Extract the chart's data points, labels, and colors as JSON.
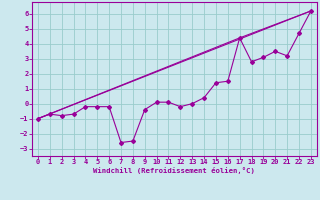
{
  "xlabel": "Windchill (Refroidissement éolien,°C)",
  "background_color": "#cce8ee",
  "grid_color": "#99cccc",
  "line_color": "#990099",
  "xlim": [
    -0.5,
    23.5
  ],
  "ylim": [
    -3.5,
    6.8
  ],
  "xticks": [
    0,
    1,
    2,
    3,
    4,
    5,
    6,
    7,
    8,
    9,
    10,
    11,
    12,
    13,
    14,
    15,
    16,
    17,
    18,
    19,
    20,
    21,
    22,
    23
  ],
  "yticks": [
    -3,
    -2,
    -1,
    0,
    1,
    2,
    3,
    4,
    5,
    6
  ],
  "series1_x": [
    0,
    1,
    2,
    3,
    4,
    5,
    6,
    7,
    8,
    9,
    10,
    11,
    12,
    13,
    14,
    15,
    16,
    17,
    18,
    19,
    20,
    21,
    22,
    23
  ],
  "series1_y": [
    -1.0,
    -0.7,
    -0.8,
    -0.7,
    -0.2,
    -0.2,
    -0.2,
    -2.6,
    -2.5,
    -0.4,
    0.1,
    0.1,
    -0.2,
    0.0,
    0.4,
    1.4,
    1.5,
    4.4,
    2.8,
    3.1,
    3.5,
    3.2,
    4.7,
    6.2
  ],
  "ref_line1_x": [
    0,
    23
  ],
  "ref_line1_y": [
    -1.0,
    6.2
  ],
  "ref_line2_x": [
    0,
    17,
    23
  ],
  "ref_line2_y": [
    -1.0,
    4.4,
    6.2
  ],
  "ref_line3_x": [
    0,
    23
  ],
  "ref_line3_y": [
    -1.0,
    6.2
  ]
}
